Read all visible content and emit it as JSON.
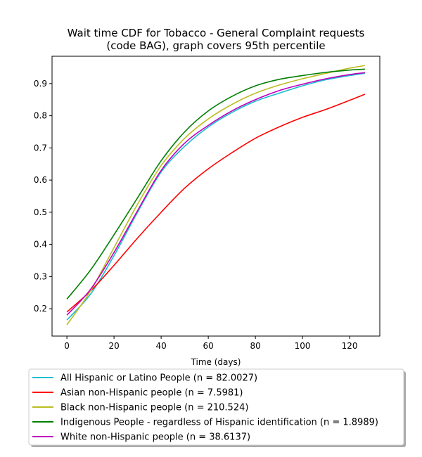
{
  "chart_data": {
    "type": "line",
    "title_lines": [
      "Wait time CDF for Tobacco - General Complaint  requests",
      "(code BAG), graph covers 95th percentile"
    ],
    "xlabel": "Time (days)",
    "ylabel": "",
    "xlim": [
      -6.3,
      132.8
    ],
    "ylim": [
      0.115,
      0.985
    ],
    "xticks": [
      0,
      20,
      40,
      60,
      80,
      100,
      120
    ],
    "yticks": [
      0.2,
      0.3,
      0.4,
      0.5,
      0.6,
      0.7,
      0.8,
      0.9
    ],
    "x": [
      0,
      10,
      20,
      30,
      40,
      50,
      60,
      70,
      80,
      90,
      100,
      110,
      120,
      126.5
    ],
    "series": [
      {
        "name": "All Hispanic or Latino People (n = 82.0027)",
        "color": "#17becf",
        "values": [
          0.165,
          0.245,
          0.365,
          0.5,
          0.625,
          0.705,
          0.765,
          0.81,
          0.845,
          0.87,
          0.893,
          0.912,
          0.925,
          0.932
        ]
      },
      {
        "name": "Asian non-Hispanic people (n = 7.5981)",
        "color": "#ff0000",
        "values": [
          0.19,
          0.255,
          0.335,
          0.42,
          0.5,
          0.575,
          0.635,
          0.685,
          0.73,
          0.765,
          0.795,
          0.82,
          0.848,
          0.867
        ]
      },
      {
        "name": "Black non-Hispanic people (n = 210.524)",
        "color": "#bcbd22",
        "values": [
          0.15,
          0.255,
          0.39,
          0.525,
          0.645,
          0.73,
          0.79,
          0.835,
          0.87,
          0.895,
          0.915,
          0.932,
          0.948,
          0.956
        ]
      },
      {
        "name": "Indigenous People - regardless of Hispanic identification (n = 1.8989)",
        "color": "#008000",
        "values": [
          0.23,
          0.32,
          0.43,
          0.545,
          0.66,
          0.75,
          0.815,
          0.86,
          0.893,
          0.913,
          0.925,
          0.935,
          0.942,
          0.945
        ]
      },
      {
        "name": "White non-Hispanic people (n = 38.6137)",
        "color": "#bf00bf",
        "values": [
          0.18,
          0.26,
          0.375,
          0.505,
          0.63,
          0.715,
          0.77,
          0.815,
          0.85,
          0.878,
          0.898,
          0.915,
          0.928,
          0.934
        ]
      }
    ],
    "grid": false,
    "legend_position": "below"
  }
}
